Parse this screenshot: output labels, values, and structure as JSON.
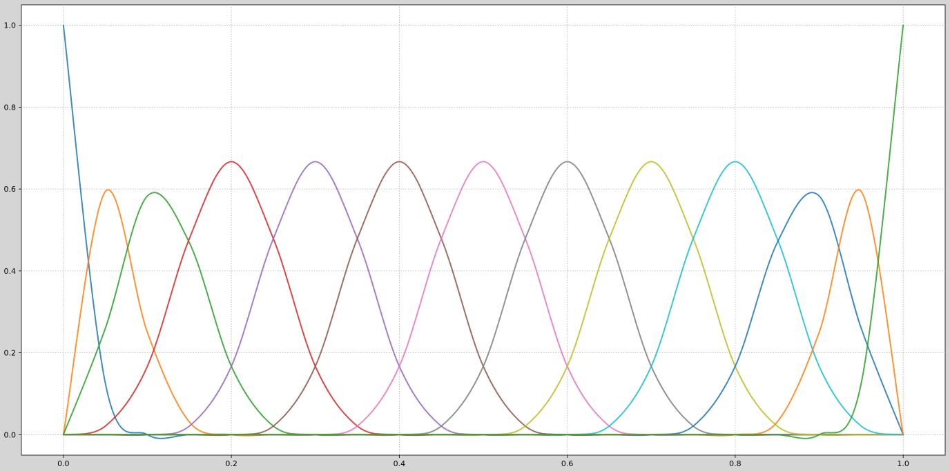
{
  "chart_data": {
    "type": "line",
    "title": "",
    "xlabel": "",
    "ylabel": "",
    "xlim": [
      -0.05,
      1.05
    ],
    "ylim": [
      -0.05,
      1.05
    ],
    "grid": true,
    "x_ticks": [
      "0.0",
      "0.2",
      "0.4",
      "0.6",
      "0.8",
      "1.0"
    ],
    "y_ticks": [
      "0.0",
      "0.2",
      "0.4",
      "0.6",
      "0.8",
      "1.0"
    ],
    "x": [
      0.0,
      0.05,
      0.1,
      0.15,
      0.2,
      0.25,
      0.3,
      0.35,
      0.4,
      0.45,
      0.5,
      0.55,
      0.6,
      0.65,
      0.7,
      0.75,
      0.8,
      0.85,
      0.9,
      0.95,
      1.0
    ],
    "series": [
      {
        "color": "#1f77b4",
        "values": [
          1.0,
          0.125,
          0.0,
          0.0,
          0.0,
          0.0,
          0.0,
          0.0,
          0.0,
          0.0,
          0.0,
          0.0,
          0.0,
          0.0,
          0.0,
          0.0,
          0.0,
          0.0,
          0.0,
          0.0,
          0.0
        ]
      },
      {
        "color": "#ff7f0e",
        "values": [
          0.0,
          0.594,
          0.25,
          0.031,
          0.0,
          0.0,
          0.0,
          0.0,
          0.0,
          0.0,
          0.0,
          0.0,
          0.0,
          0.0,
          0.0,
          0.0,
          0.0,
          0.0,
          0.0,
          0.0,
          0.0
        ]
      },
      {
        "color": "#2ca02c",
        "values": [
          0.0,
          0.26,
          0.583,
          0.469,
          0.167,
          0.021,
          0.0,
          0.0,
          0.0,
          0.0,
          0.0,
          0.0,
          0.0,
          0.0,
          0.0,
          0.0,
          0.0,
          0.0,
          0.0,
          0.0,
          0.0
        ]
      },
      {
        "color": "#d62728",
        "values": [
          0.0,
          0.021,
          0.167,
          0.479,
          0.667,
          0.479,
          0.167,
          0.021,
          0.0,
          0.0,
          0.0,
          0.0,
          0.0,
          0.0,
          0.0,
          0.0,
          0.0,
          0.0,
          0.0,
          0.0,
          0.0
        ]
      },
      {
        "color": "#9467bd",
        "values": [
          0.0,
          0.0,
          0.0,
          0.021,
          0.167,
          0.479,
          0.667,
          0.479,
          0.167,
          0.021,
          0.0,
          0.0,
          0.0,
          0.0,
          0.0,
          0.0,
          0.0,
          0.0,
          0.0,
          0.0,
          0.0
        ]
      },
      {
        "color": "#8c564b",
        "values": [
          0.0,
          0.0,
          0.0,
          0.0,
          0.0,
          0.021,
          0.167,
          0.479,
          0.667,
          0.479,
          0.167,
          0.021,
          0.0,
          0.0,
          0.0,
          0.0,
          0.0,
          0.0,
          0.0,
          0.0,
          0.0
        ]
      },
      {
        "color": "#e377c2",
        "values": [
          0.0,
          0.0,
          0.0,
          0.0,
          0.0,
          0.0,
          0.0,
          0.021,
          0.167,
          0.479,
          0.667,
          0.479,
          0.167,
          0.021,
          0.0,
          0.0,
          0.0,
          0.0,
          0.0,
          0.0,
          0.0
        ]
      },
      {
        "color": "#7f7f7f",
        "values": [
          0.0,
          0.0,
          0.0,
          0.0,
          0.0,
          0.0,
          0.0,
          0.0,
          0.0,
          0.021,
          0.167,
          0.479,
          0.667,
          0.479,
          0.167,
          0.021,
          0.0,
          0.0,
          0.0,
          0.0,
          0.0
        ]
      },
      {
        "color": "#bcbd22",
        "values": [
          0.0,
          0.0,
          0.0,
          0.0,
          0.0,
          0.0,
          0.0,
          0.0,
          0.0,
          0.0,
          0.0,
          0.021,
          0.167,
          0.479,
          0.667,
          0.479,
          0.167,
          0.021,
          0.0,
          0.0,
          0.0
        ]
      },
      {
        "color": "#17becf",
        "values": [
          0.0,
          0.0,
          0.0,
          0.0,
          0.0,
          0.0,
          0.0,
          0.0,
          0.0,
          0.0,
          0.0,
          0.0,
          0.0,
          0.021,
          0.167,
          0.479,
          0.667,
          0.479,
          0.167,
          0.021,
          0.0
        ]
      },
      {
        "color": "#1f77b4",
        "values": [
          0.0,
          0.0,
          0.0,
          0.0,
          0.0,
          0.0,
          0.0,
          0.0,
          0.0,
          0.0,
          0.0,
          0.0,
          0.0,
          0.0,
          0.0,
          0.021,
          0.167,
          0.469,
          0.583,
          0.26,
          0.0
        ]
      },
      {
        "color": "#ff7f0e",
        "values": [
          0.0,
          0.0,
          0.0,
          0.0,
          0.0,
          0.0,
          0.0,
          0.0,
          0.0,
          0.0,
          0.0,
          0.0,
          0.0,
          0.0,
          0.0,
          0.0,
          0.0,
          0.031,
          0.25,
          0.594,
          0.0
        ]
      },
      {
        "color": "#2ca02c",
        "values": [
          0.0,
          0.0,
          0.0,
          0.0,
          0.0,
          0.0,
          0.0,
          0.0,
          0.0,
          0.0,
          0.0,
          0.0,
          0.0,
          0.0,
          0.0,
          0.0,
          0.0,
          0.0,
          0.0,
          0.125,
          1.0
        ]
      }
    ]
  }
}
